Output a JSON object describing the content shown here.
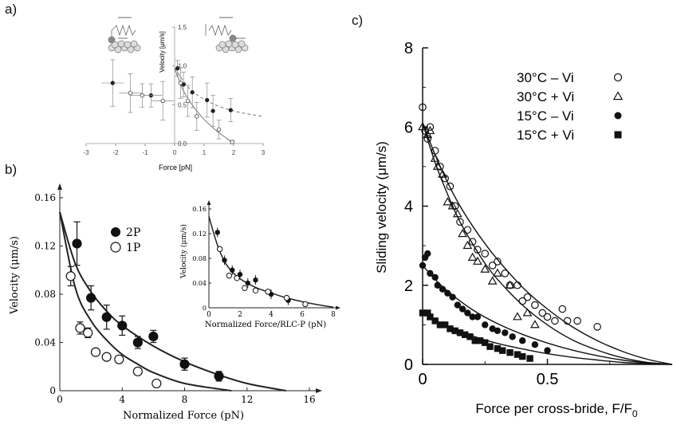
{
  "panels": {
    "a_label": "a)",
    "b_label": "b)",
    "c_label": "c)"
  },
  "chart_data": [
    {
      "id": "a",
      "type": "scatter",
      "title": "",
      "xlabel": "Force [pN]",
      "ylabel": "Velocity [μm/s]",
      "xlim": [
        -3,
        3
      ],
      "ylim": [
        0,
        1.5
      ],
      "xticks": [
        "-3",
        "-2",
        "-1",
        "0",
        "1",
        "2",
        "3"
      ],
      "yticks": [
        "0.0",
        "0.5",
        "1.0",
        "1.5"
      ],
      "series": [
        {
          "marker": "filled",
          "x": [
            -2.1,
            -0.8,
            0.1,
            0.3,
            0.6,
            1.1,
            1.3,
            1.9
          ],
          "y": [
            0.78,
            0.62,
            0.97,
            0.76,
            0.66,
            0.56,
            0.42,
            0.43
          ],
          "err": [
            0.3,
            0.15,
            0.1,
            0.16,
            0.2,
            0.22,
            0.2,
            0.15
          ]
        },
        {
          "marker": "open",
          "x": [
            -1.5,
            -1.1,
            -0.4,
            0.2,
            0.45,
            0.75,
            1.5,
            1.95
          ],
          "y": [
            0.65,
            0.62,
            0.55,
            0.78,
            0.55,
            0.35,
            0.18,
            0.02
          ],
          "err": [
            0.25,
            0.15,
            0.25,
            0.2,
            0.2,
            0.18,
            0.12,
            0.02
          ]
        }
      ],
      "fits": [
        {
          "style": "solid",
          "x": [
            0,
            0.25,
            0.5,
            0.75,
            1.0,
            1.25,
            1.5,
            1.75,
            2.0
          ],
          "y": [
            0.97,
            0.72,
            0.55,
            0.42,
            0.31,
            0.22,
            0.14,
            0.07,
            0.0
          ]
        },
        {
          "style": "dashed",
          "x": [
            0,
            0.5,
            1.0,
            1.5,
            2.0,
            2.5,
            3.0
          ],
          "y": [
            0.97,
            0.71,
            0.57,
            0.48,
            0.42,
            0.38,
            0.35
          ]
        }
      ]
    },
    {
      "id": "b",
      "type": "scatter",
      "title": "",
      "xlabel": "Normalized Force (pN)",
      "ylabel": "Velocity (μm/s)",
      "xlim": [
        0,
        16
      ],
      "ylim": [
        0,
        0.16
      ],
      "xticks": [
        "0",
        "4",
        "8",
        "12",
        "16"
      ],
      "yticks": [
        "0",
        "0.04",
        "0.08",
        "0.12",
        "0.16"
      ],
      "legend": [
        "2P",
        "1P"
      ],
      "series": [
        {
          "name": "2P",
          "marker": "filled",
          "x": [
            1.1,
            2.0,
            3.0,
            4.0,
            5.0,
            6.0,
            8.0,
            10.2
          ],
          "y": [
            0.122,
            0.077,
            0.061,
            0.054,
            0.04,
            0.045,
            0.022,
            0.012
          ],
          "err": [
            0.018,
            0.01,
            0.01,
            0.008,
            0.005,
            0.005,
            0.005,
            0.004
          ]
        },
        {
          "name": "1P",
          "marker": "open",
          "x": [
            0.7,
            1.3,
            1.8,
            2.3,
            3.0,
            3.8,
            5.0,
            6.2
          ],
          "y": [
            0.095,
            0.052,
            0.048,
            0.032,
            0.028,
            0.026,
            0.016,
            0.006
          ],
          "err": [
            0.008,
            0.005,
            0.004,
            0.002,
            0.002,
            0.002,
            0.002,
            0.002
          ]
        }
      ],
      "fits": [
        {
          "style": "solid",
          "x": [
            0,
            1,
            2,
            3,
            4,
            6,
            8,
            10,
            12,
            14.5
          ],
          "y": [
            0.148,
            0.105,
            0.082,
            0.066,
            0.054,
            0.037,
            0.024,
            0.014,
            0.006,
            0.0
          ]
        },
        {
          "style": "solid",
          "x": [
            0,
            1,
            2,
            3,
            4,
            5,
            6,
            8,
            11
          ],
          "y": [
            0.148,
            0.085,
            0.058,
            0.042,
            0.03,
            0.022,
            0.015,
            0.006,
            0.0
          ]
        }
      ],
      "inset": {
        "xlabel": "Normalized Force/RLC-P (pN)",
        "ylabel": "Velocity (μm/s)",
        "xlim": [
          0,
          8
        ],
        "ylim": [
          0,
          0.16
        ],
        "xticks": [
          "0",
          "2",
          "4",
          "6",
          "8"
        ],
        "yticks": [
          "0",
          "0.04",
          "0.08",
          "0.12",
          "0.16"
        ],
        "filled": {
          "x": [
            0.55,
            1.0,
            1.5,
            2.0,
            2.5,
            3.0,
            4.0,
            5.1
          ],
          "y": [
            0.122,
            0.077,
            0.061,
            0.054,
            0.04,
            0.045,
            0.022,
            0.012
          ]
        },
        "open": {
          "x": [
            0.7,
            1.3,
            1.8,
            2.3,
            3.0,
            3.8,
            5.0,
            6.2
          ],
          "y": [
            0.095,
            0.052,
            0.048,
            0.032,
            0.028,
            0.026,
            0.016,
            0.006
          ]
        },
        "fit": {
          "x": [
            0,
            0.5,
            1,
            1.5,
            2,
            3,
            4,
            5,
            6,
            7,
            8
          ],
          "y": [
            0.148,
            0.105,
            0.075,
            0.058,
            0.047,
            0.033,
            0.024,
            0.016,
            0.01,
            0.005,
            0.001
          ]
        }
      }
    },
    {
      "id": "c",
      "type": "scatter",
      "title": "",
      "xlabel": "Force per cross-bride, F/F",
      "xlabel_sub": "0",
      "ylabel": "Sliding velocity (μm/s)",
      "xlim": [
        0,
        1
      ],
      "ylim": [
        0,
        8
      ],
      "xticks": [
        "0",
        "0.5"
      ],
      "yticks": [
        "0",
        "2",
        "4",
        "6",
        "8"
      ],
      "legend": [
        {
          "label": "30°C – Vi",
          "marker": "circle-open"
        },
        {
          "label": "30°C + Vi",
          "marker": "triangle-open"
        },
        {
          "label": "15°C – Vi",
          "marker": "circle-filled"
        },
        {
          "label": "15°C + Vi",
          "marker": "square-filled"
        }
      ],
      "series": [
        {
          "name": "30°C – Vi",
          "marker": "circle-open",
          "x": [
            0.0,
            0.01,
            0.02,
            0.03,
            0.05,
            0.07,
            0.09,
            0.11,
            0.13,
            0.15,
            0.18,
            0.2,
            0.22,
            0.25,
            0.28,
            0.3,
            0.33,
            0.35,
            0.38,
            0.4,
            0.42,
            0.45,
            0.48,
            0.5,
            0.53,
            0.56,
            0.58,
            0.62,
            0.7
          ],
          "y": [
            6.5,
            5.9,
            5.7,
            6.0,
            5.4,
            5.0,
            4.7,
            4.5,
            4.0,
            3.6,
            3.4,
            3.1,
            2.9,
            2.8,
            2.5,
            2.6,
            2.3,
            2.0,
            2.0,
            1.6,
            1.7,
            1.5,
            1.3,
            1.2,
            1.1,
            1.4,
            1.1,
            1.1,
            0.95
          ]
        },
        {
          "name": "30°C + Vi",
          "marker": "triangle-open",
          "x": [
            0.0,
            0.02,
            0.03,
            0.05,
            0.06,
            0.08,
            0.1,
            0.12,
            0.14,
            0.16,
            0.18,
            0.2,
            0.22,
            0.25,
            0.28,
            0.3,
            0.35,
            0.38,
            0.42,
            0.45
          ],
          "y": [
            6.0,
            5.8,
            5.9,
            5.2,
            5.0,
            4.8,
            4.1,
            4.0,
            3.8,
            3.3,
            3.0,
            2.7,
            2.6,
            2.4,
            2.1,
            2.3,
            2.0,
            1.2,
            1.3,
            1.0
          ]
        },
        {
          "name": "15°C – Vi",
          "marker": "circle-filled",
          "x": [
            0.0,
            0.01,
            0.02,
            0.03,
            0.05,
            0.06,
            0.08,
            0.1,
            0.12,
            0.14,
            0.16,
            0.18,
            0.2,
            0.22,
            0.25,
            0.28,
            0.3,
            0.33,
            0.36,
            0.4,
            0.45,
            0.5
          ],
          "y": [
            2.5,
            2.7,
            2.8,
            2.3,
            2.2,
            2.0,
            1.9,
            1.8,
            1.7,
            1.5,
            1.4,
            1.3,
            1.2,
            1.2,
            1.0,
            0.9,
            0.85,
            0.8,
            0.7,
            0.6,
            0.5,
            0.35
          ]
        },
        {
          "name": "15°C + Vi",
          "marker": "square-filled",
          "x": [
            0.0,
            0.02,
            0.03,
            0.05,
            0.07,
            0.09,
            0.11,
            0.13,
            0.15,
            0.17,
            0.19,
            0.21,
            0.23,
            0.25,
            0.27,
            0.3,
            0.32,
            0.35,
            0.38,
            0.4,
            0.43
          ],
          "y": [
            1.3,
            1.3,
            1.2,
            1.1,
            1.0,
            1.0,
            0.9,
            0.85,
            0.8,
            0.75,
            0.7,
            0.6,
            0.6,
            0.55,
            0.45,
            0.4,
            0.35,
            0.3,
            0.25,
            0.2,
            0.15
          ]
        }
      ],
      "fits": [
        {
          "x": [
            0,
            0.05,
            0.1,
            0.15,
            0.2,
            0.25,
            0.3,
            0.4,
            0.5,
            0.6,
            0.7,
            0.8,
            0.9,
            1.0
          ],
          "y": [
            6.1,
            5.3,
            4.6,
            4.0,
            3.5,
            3.05,
            2.65,
            1.95,
            1.4,
            0.95,
            0.6,
            0.33,
            0.13,
            0.0
          ]
        },
        {
          "x": [
            0,
            0.05,
            0.1,
            0.15,
            0.2,
            0.25,
            0.3,
            0.4,
            0.5,
            0.6,
            0.7,
            0.8,
            0.9,
            1.0
          ],
          "y": [
            6.1,
            5.1,
            4.3,
            3.6,
            3.05,
            2.55,
            2.15,
            1.5,
            1.0,
            0.62,
            0.36,
            0.17,
            0.05,
            0.0
          ]
        },
        {
          "x": [
            0,
            0.05,
            0.1,
            0.2,
            0.3,
            0.4,
            0.5,
            0.6,
            0.7,
            0.8,
            0.9,
            1.0
          ],
          "y": [
            2.5,
            2.15,
            1.85,
            1.38,
            1.03,
            0.76,
            0.54,
            0.36,
            0.22,
            0.11,
            0.04,
            0.0
          ]
        },
        {
          "x": [
            0,
            0.05,
            0.1,
            0.2,
            0.3,
            0.4,
            0.5,
            0.6,
            0.7,
            0.8,
            0.9,
            1.0
          ],
          "y": [
            1.3,
            1.12,
            0.97,
            0.72,
            0.53,
            0.39,
            0.27,
            0.18,
            0.11,
            0.05,
            0.02,
            0.0
          ]
        }
      ]
    }
  ]
}
